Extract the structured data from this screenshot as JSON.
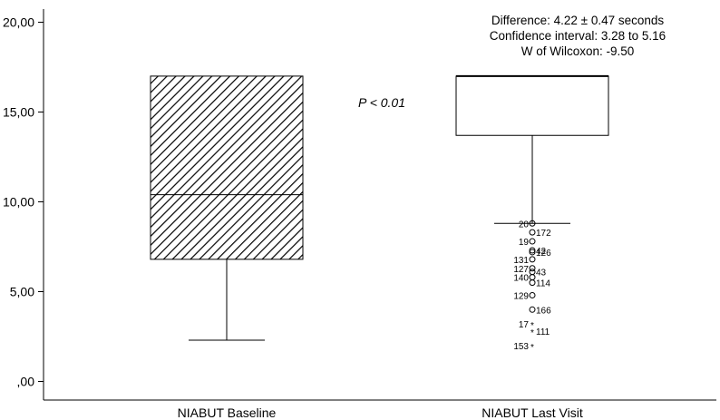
{
  "chart_data": {
    "type": "boxplot",
    "title": "",
    "xlabel": "",
    "ylabel": "",
    "ylim": [
      0,
      20
    ],
    "y_ticks": [
      0,
      5,
      10,
      15,
      20
    ],
    "y_tick_labels": [
      ",00",
      "5,00",
      "10,00",
      "15,00",
      "20,00"
    ],
    "grid": false,
    "categories": [
      "NIABUT Baseline",
      "NIABUT Last Visit"
    ],
    "boxes": [
      {
        "category": "NIABUT Baseline",
        "whisker_low": 2.3,
        "q1": 6.8,
        "median": 10.4,
        "q3": 17.0,
        "whisker_high": 17.0,
        "pattern": "diagonal-hatch",
        "outliers": []
      },
      {
        "category": "NIABUT Last Visit",
        "whisker_low": 8.8,
        "q1": 13.7,
        "median": 17.0,
        "q3": 17.0,
        "whisker_high": 17.0,
        "pattern": "none",
        "outliers": [
          {
            "id": "20",
            "y": 8.8,
            "marker": "circle"
          },
          {
            "id": "172",
            "y": 8.3,
            "marker": "circle"
          },
          {
            "id": "19",
            "y": 7.8,
            "marker": "circle"
          },
          {
            "id": "42",
            "y": 7.3,
            "marker": "circle"
          },
          {
            "id": "126",
            "y": 7.2,
            "marker": "circle"
          },
          {
            "id": "131",
            "y": 6.8,
            "marker": "circle"
          },
          {
            "id": "127",
            "y": 6.3,
            "marker": "circle"
          },
          {
            "id": "43",
            "y": 6.1,
            "marker": "circle"
          },
          {
            "id": "140",
            "y": 5.8,
            "marker": "circle"
          },
          {
            "id": "114",
            "y": 5.5,
            "marker": "circle"
          },
          {
            "id": "129",
            "y": 4.8,
            "marker": "circle"
          },
          {
            "id": "166",
            "y": 4.0,
            "marker": "circle"
          },
          {
            "id": "17",
            "y": 3.2,
            "marker": "star"
          },
          {
            "id": "111",
            "y": 2.8,
            "marker": "star"
          },
          {
            "id": "153",
            "y": 2.0,
            "marker": "star"
          }
        ]
      }
    ],
    "annotations": {
      "p_value": "P < 0.01",
      "stats_lines": [
        "Difference: 4.22 ± 0.47 seconds",
        "Confidence interval: 3.28 to 5.16",
        "W of Wilcoxon: -9.50"
      ]
    }
  }
}
